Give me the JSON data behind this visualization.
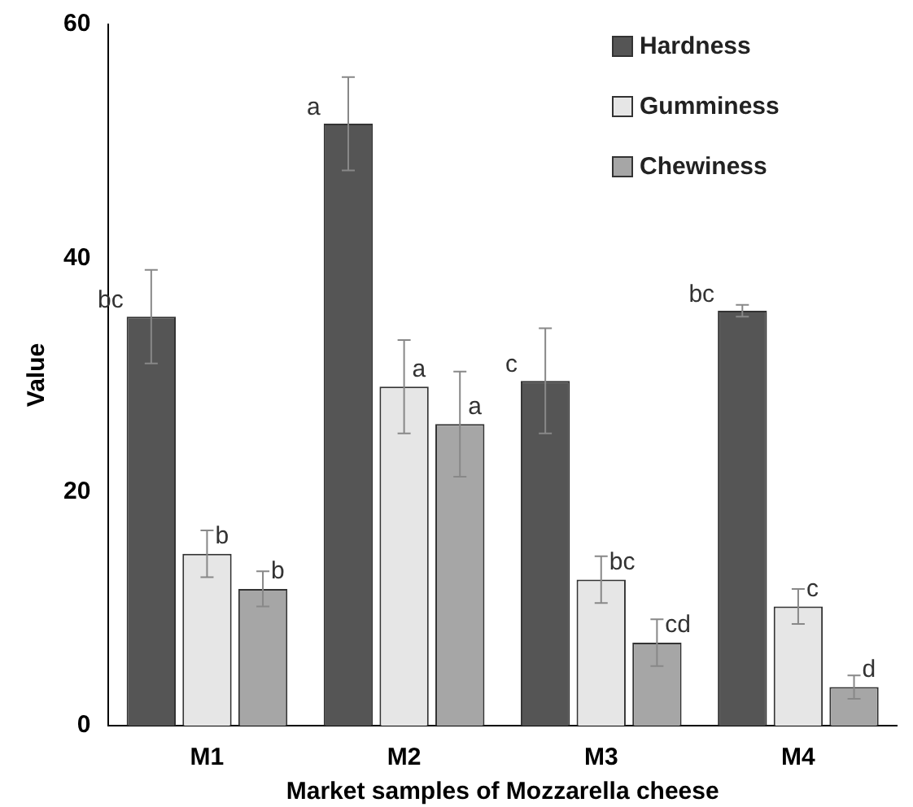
{
  "chart_data": {
    "type": "bar",
    "xlabel": "Market samples of Mozzarella cheese",
    "ylabel": "Value",
    "categories": [
      "M1",
      "M2",
      "M3",
      "M4"
    ],
    "series": [
      {
        "name": "Hardness",
        "color": "#555555",
        "values": [
          35,
          51.5,
          29.5,
          35.5
        ],
        "errors": [
          4,
          4,
          4.5,
          0.5
        ],
        "value_labels": [
          "bc",
          "a",
          "c",
          "bc"
        ]
      },
      {
        "name": "Gumminess",
        "color": "#e6e6e6",
        "values": [
          14.7,
          29,
          12.5,
          10.2
        ],
        "errors": [
          2,
          4,
          2,
          1.5
        ],
        "value_labels": [
          "b",
          "a",
          "bc",
          "c"
        ]
      },
      {
        "name": "Chewiness",
        "color": "#a6a6a6",
        "values": [
          11.7,
          25.8,
          7.1,
          3.3
        ],
        "errors": [
          1.5,
          4.5,
          2,
          1
        ],
        "value_labels": [
          "b",
          "a",
          "cd",
          "d"
        ]
      }
    ],
    "ylim": [
      0,
      60
    ],
    "yticks": [
      0,
      20,
      40,
      60
    ],
    "grid": false,
    "legend": "top right"
  }
}
